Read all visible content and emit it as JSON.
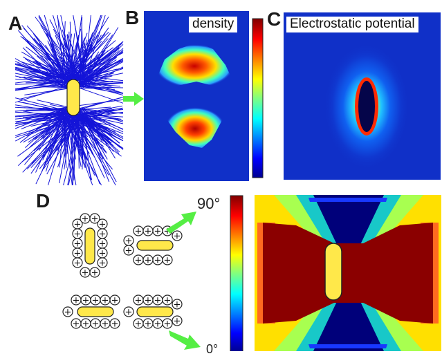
{
  "panels": {
    "a": {
      "letter": "A"
    },
    "b": {
      "letter": "B",
      "label": "density"
    },
    "c": {
      "letter": "C",
      "label": "Electrostatic potential"
    },
    "d": {
      "letter": "D",
      "scale_top": "90°",
      "scale_bottom": "0°"
    }
  },
  "ion_symbol": "+",
  "colors": {
    "rod": "#ffe84a",
    "line": "#1414d8",
    "arrow": "#55ee44",
    "map_background": "#1030c8",
    "dark_red": "#8b0000",
    "dark_blue": "#00008b"
  }
}
